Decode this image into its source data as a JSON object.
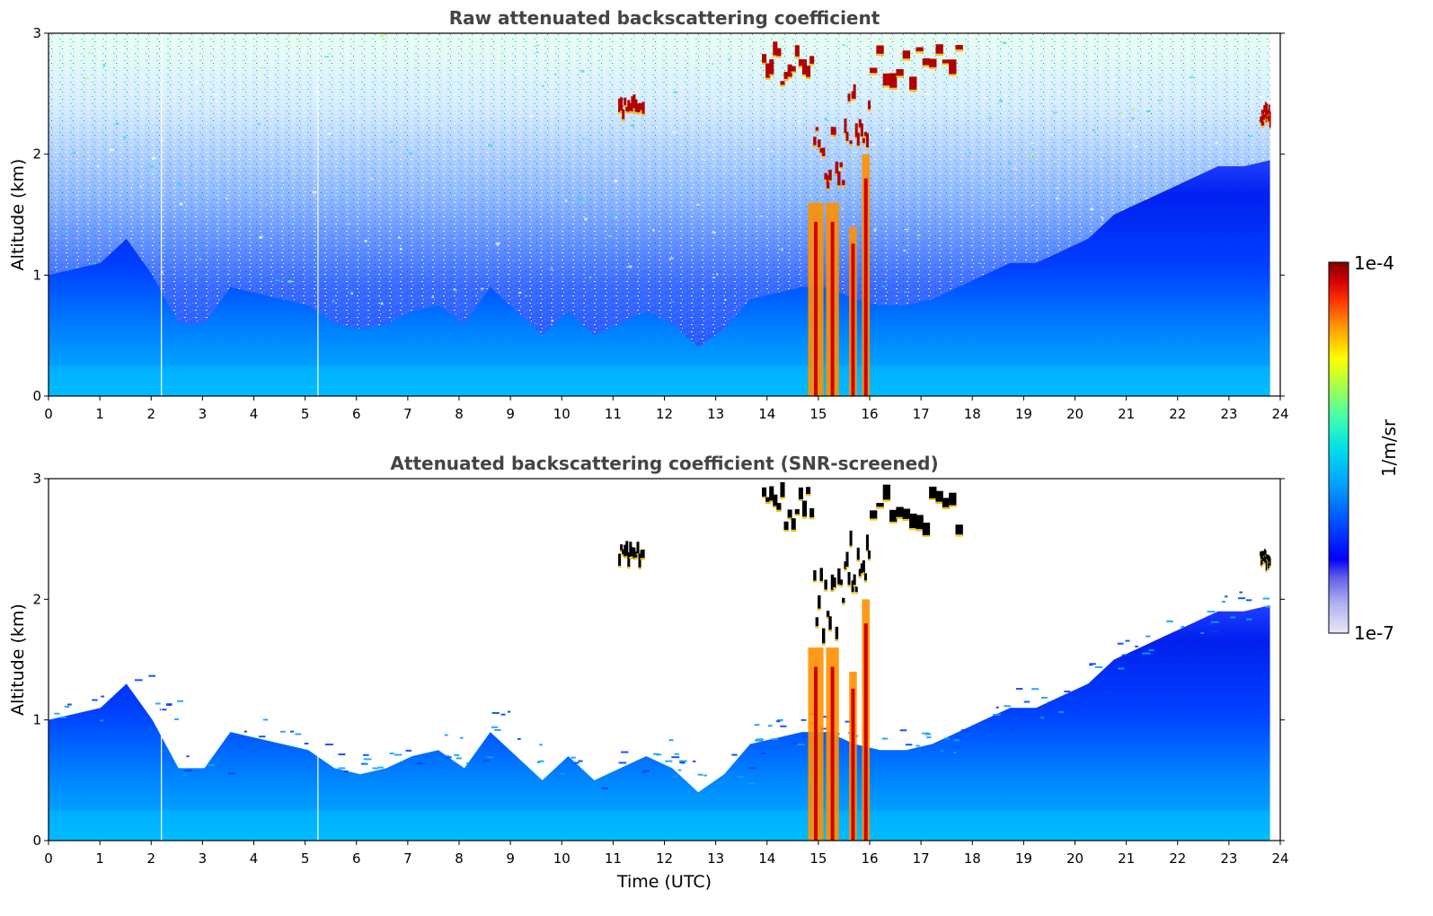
{
  "chart_data": [
    {
      "type": "heatmap",
      "title": "Raw attenuated backscattering coefficient",
      "xlabel": "",
      "ylabel": "Altitude (km)",
      "xlim": [
        0,
        24
      ],
      "ylim": [
        0,
        3
      ],
      "xticks": [
        "0",
        "1",
        "2",
        "3",
        "4",
        "5",
        "6",
        "7",
        "8",
        "9",
        "10",
        "11",
        "12",
        "13",
        "14",
        "15",
        "16",
        "17",
        "18",
        "19",
        "20",
        "21",
        "22",
        "23",
        "24"
      ],
      "yticks": [
        "0",
        "1",
        "2",
        "3"
      ],
      "screened": false,
      "aerosol_top_km": [
        1.0,
        1.05,
        1.1,
        1.3,
        1.0,
        0.6,
        0.6,
        0.9,
        0.85,
        0.8,
        0.75,
        0.6,
        0.55,
        0.6,
        0.7,
        0.75,
        0.6,
        0.9,
        0.7,
        0.5,
        0.7,
        0.5,
        0.6,
        0.7,
        0.6,
        0.4,
        0.55,
        0.8,
        0.85,
        0.9,
        0.9,
        0.8,
        0.75,
        0.75,
        0.8,
        0.9,
        1.0,
        1.1,
        1.1,
        1.2,
        1.3,
        1.5,
        1.6,
        1.7,
        1.8,
        1.9,
        1.9,
        1.95
      ],
      "clouds": [
        {
          "t0": 11.1,
          "t1": 11.6,
          "z0": 2.25,
          "z1": 2.45
        },
        {
          "t0": 13.9,
          "t1": 14.9,
          "z0": 2.4,
          "z1": 3.0
        },
        {
          "t0": 14.9,
          "t1": 15.5,
          "z0": 1.4,
          "z1": 2.3
        },
        {
          "t0": 15.5,
          "t1": 16.0,
          "z0": 1.8,
          "z1": 2.6
        },
        {
          "t0": 16.0,
          "t1": 17.8,
          "z0": 2.4,
          "z1": 2.95
        },
        {
          "t0": 23.6,
          "t1": 23.8,
          "z0": 2.2,
          "z1": 2.4
        }
      ],
      "rain_columns": [
        {
          "t0": 14.8,
          "t1": 15.1,
          "z1": 1.6
        },
        {
          "t0": 15.15,
          "t1": 15.4,
          "z1": 1.6
        },
        {
          "t0": 15.6,
          "t1": 15.75,
          "z1": 1.4
        },
        {
          "t0": 15.85,
          "t1": 16.0,
          "z1": 2.0
        }
      ]
    },
    {
      "type": "heatmap",
      "title": "Attenuated backscattering coefficient (SNR-screened)",
      "xlabel": "Time (UTC)",
      "ylabel": "Altitude (km)",
      "xlim": [
        0,
        24
      ],
      "ylim": [
        0,
        3
      ],
      "xticks": [
        "0",
        "1",
        "2",
        "3",
        "4",
        "5",
        "6",
        "7",
        "8",
        "9",
        "10",
        "11",
        "12",
        "13",
        "14",
        "15",
        "16",
        "17",
        "18",
        "19",
        "20",
        "21",
        "22",
        "23",
        "24"
      ],
      "yticks": [
        "0",
        "1",
        "2",
        "3"
      ],
      "screened": true,
      "aerosol_top_km": [
        1.0,
        1.05,
        1.1,
        1.3,
        1.0,
        0.6,
        0.6,
        0.9,
        0.85,
        0.8,
        0.75,
        0.6,
        0.55,
        0.6,
        0.7,
        0.75,
        0.6,
        0.9,
        0.7,
        0.5,
        0.7,
        0.5,
        0.6,
        0.7,
        0.6,
        0.4,
        0.55,
        0.8,
        0.85,
        0.9,
        0.9,
        0.8,
        0.75,
        0.75,
        0.8,
        0.9,
        1.0,
        1.1,
        1.1,
        1.2,
        1.3,
        1.5,
        1.6,
        1.7,
        1.8,
        1.9,
        1.9,
        1.95
      ],
      "clouds": [
        {
          "t0": 11.1,
          "t1": 11.6,
          "z0": 2.25,
          "z1": 2.45
        },
        {
          "t0": 13.9,
          "t1": 14.9,
          "z0": 2.4,
          "z1": 3.0
        },
        {
          "t0": 14.9,
          "t1": 15.5,
          "z0": 1.4,
          "z1": 2.3
        },
        {
          "t0": 15.5,
          "t1": 16.0,
          "z0": 1.8,
          "z1": 2.6
        },
        {
          "t0": 16.0,
          "t1": 17.8,
          "z0": 2.4,
          "z1": 2.95
        },
        {
          "t0": 23.6,
          "t1": 23.8,
          "z0": 2.2,
          "z1": 2.4
        }
      ],
      "rain_columns": [
        {
          "t0": 14.8,
          "t1": 15.1,
          "z1": 1.6
        },
        {
          "t0": 15.15,
          "t1": 15.4,
          "z1": 1.6
        },
        {
          "t0": 15.6,
          "t1": 15.75,
          "z1": 1.4
        },
        {
          "t0": 15.85,
          "t1": 16.0,
          "z1": 2.0
        }
      ]
    }
  ],
  "colorbar": {
    "label": "1/m/sr",
    "max_label": "1e-4",
    "min_label": "1e-7",
    "scale": "log",
    "colors": [
      "#e8e8f8",
      "#b0b0f0",
      "#7070e8",
      "#0000ff",
      "#0050ff",
      "#00a0ff",
      "#00e0e8",
      "#40ffb0",
      "#a0ff50",
      "#ffff00",
      "#ffa000",
      "#ff3000",
      "#d00000",
      "#800000"
    ]
  }
}
